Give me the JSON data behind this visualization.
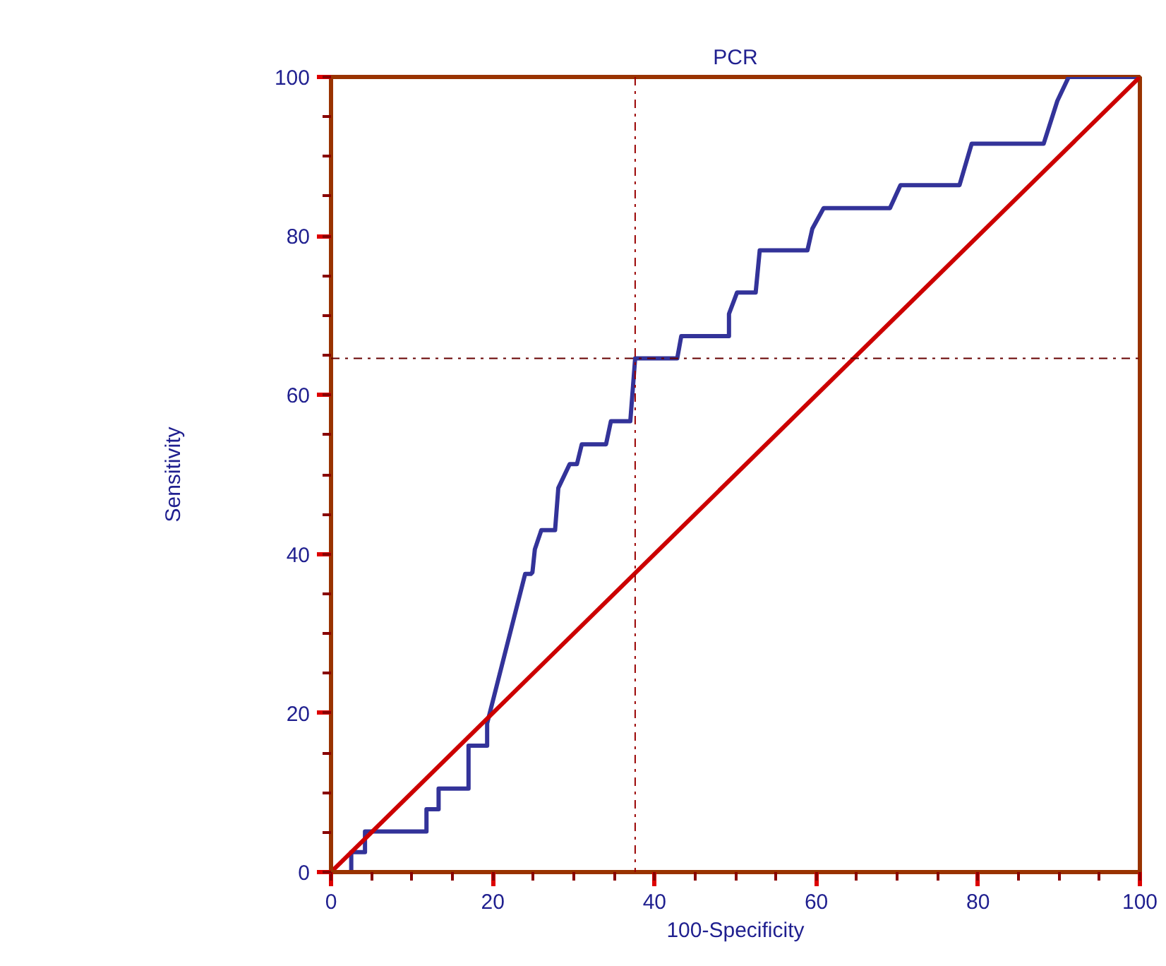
{
  "chart_data": {
    "type": "line",
    "title": "PCR",
    "xlabel": "100-Specificity",
    "ylabel": "Sensitivity",
    "xlim": [
      0,
      100
    ],
    "ylim": [
      0,
      100
    ],
    "xticks": [
      0,
      20,
      40,
      60,
      80,
      100
    ],
    "yticks": [
      0,
      20,
      40,
      60,
      80,
      100
    ],
    "grid": false,
    "marker": "none",
    "line_style": "solid",
    "series": [
      {
        "color": "#333399",
        "x": [
          0,
          2.5,
          2.5,
          4.2,
          4.2,
          11.8,
          11.8,
          13.3,
          13.3,
          17.0,
          17.0,
          19.3,
          19.3,
          24.0,
          24.7,
          24.9,
          25.2,
          26.0,
          27.7,
          28.1,
          29.5,
          30.4,
          31.0,
          34.0,
          34.6,
          37.0,
          37.6,
          42.8,
          43.3,
          49.2,
          49.2,
          50.2,
          52.5,
          53.0,
          58.9,
          59.5,
          60.9,
          69.1,
          70.4,
          77.7,
          79.2,
          88.1,
          89.8,
          91.2,
          100
        ],
        "values": [
          0,
          0,
          2.5,
          2.5,
          5.1,
          5.1,
          7.9,
          7.9,
          10.5,
          10.5,
          15.9,
          15.9,
          18.7,
          37.5,
          37.5,
          37.7,
          40.6,
          43.0,
          43.0,
          48.3,
          51.3,
          51.3,
          53.8,
          53.8,
          56.7,
          56.7,
          64.6,
          64.6,
          67.4,
          67.4,
          70.2,
          72.9,
          72.9,
          78.2,
          78.2,
          80.9,
          83.5,
          83.5,
          86.4,
          86.4,
          91.6,
          91.6,
          97.0,
          100,
          100
        ]
      },
      {
        "color": "#cc0000",
        "x": [
          0,
          100
        ],
        "values": [
          0,
          100
        ]
      }
    ],
    "ref_lines": [
      {
        "axis": "x",
        "value": 37.6,
        "color": "#990000",
        "line_style": "dashdot"
      },
      {
        "axis": "y",
        "value": 64.6,
        "color": "#660000",
        "line_style": "dashdot"
      }
    ]
  }
}
